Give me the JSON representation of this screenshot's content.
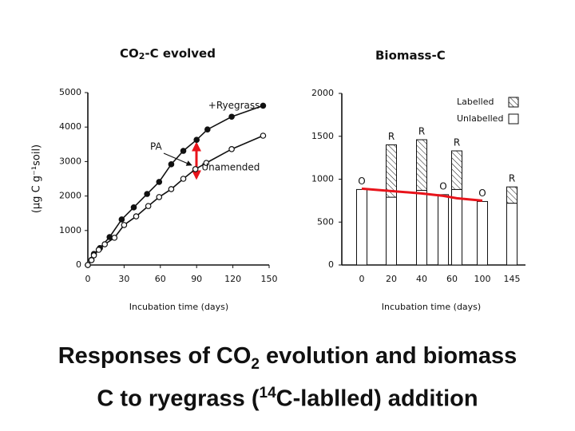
{
  "chart_data": [
    {
      "type": "line",
      "title": [
        "CO",
        "2",
        "-C evolved"
      ],
      "x_label": "Incubation time (days)",
      "y_label": "(μg C g⁻¹soil)",
      "annotation": "PA",
      "xlim": [
        0,
        150
      ],
      "xticks": [
        0,
        30,
        60,
        90,
        120,
        150
      ],
      "ylim": [
        0,
        5000
      ],
      "yticks": [
        0,
        1000,
        2000,
        3000,
        4000,
        5000
      ],
      "series": [
        {
          "name": "+Ryegrass",
          "color": "#111111",
          "marker": "filled",
          "x": [
            0,
            3,
            5,
            10,
            18,
            28,
            38,
            49,
            59,
            69,
            79,
            90,
            99,
            119,
            145
          ],
          "values": [
            0,
            150,
            320,
            490,
            810,
            1320,
            1670,
            2060,
            2410,
            2920,
            3310,
            3630,
            3930,
            4300,
            4620
          ]
        },
        {
          "name": "Unamended",
          "color": "#111111",
          "marker": "open",
          "x": [
            0,
            3,
            5,
            9,
            14,
            22,
            30,
            40,
            50,
            59,
            69,
            79,
            89,
            98,
            119,
            145
          ],
          "values": [
            0,
            140,
            280,
            440,
            600,
            790,
            1160,
            1410,
            1710,
            1970,
            2200,
            2500,
            2780,
            2960,
            3360,
            3750
          ]
        }
      ]
    },
    {
      "type": "stacked_bar",
      "title": "Biomass-C",
      "x_label": "Incubation time (days)",
      "categories": [
        "0",
        "20",
        "40",
        null,
        "60",
        "100",
        "145"
      ],
      "bar_labels": [
        "O",
        "R",
        "R",
        "O",
        "R",
        "O",
        "R"
      ],
      "ylim": [
        0,
        2000
      ],
      "yticks": [
        0,
        500,
        1000,
        1500,
        2000
      ],
      "legend": "top-right",
      "series": [
        {
          "name": "Unlabelled",
          "color": "#ffffff",
          "pattern": "none",
          "values": [
            880,
            790,
            870,
            820,
            880,
            740,
            720
          ]
        },
        {
          "name": "Labelled",
          "color": "#ffffff",
          "pattern": "hatch",
          "values": [
            0,
            610,
            590,
            0,
            450,
            0,
            190
          ]
        }
      ],
      "trend": {
        "color": "#e8141b",
        "values": [
          890,
          862,
          834,
          806,
          778,
          750,
          null
        ]
      }
    }
  ],
  "caption": [
    "Responses of CO",
    "2",
    " evolution and biomass",
    "C to ryegrass (",
    "14",
    "C-lablled) addition"
  ]
}
